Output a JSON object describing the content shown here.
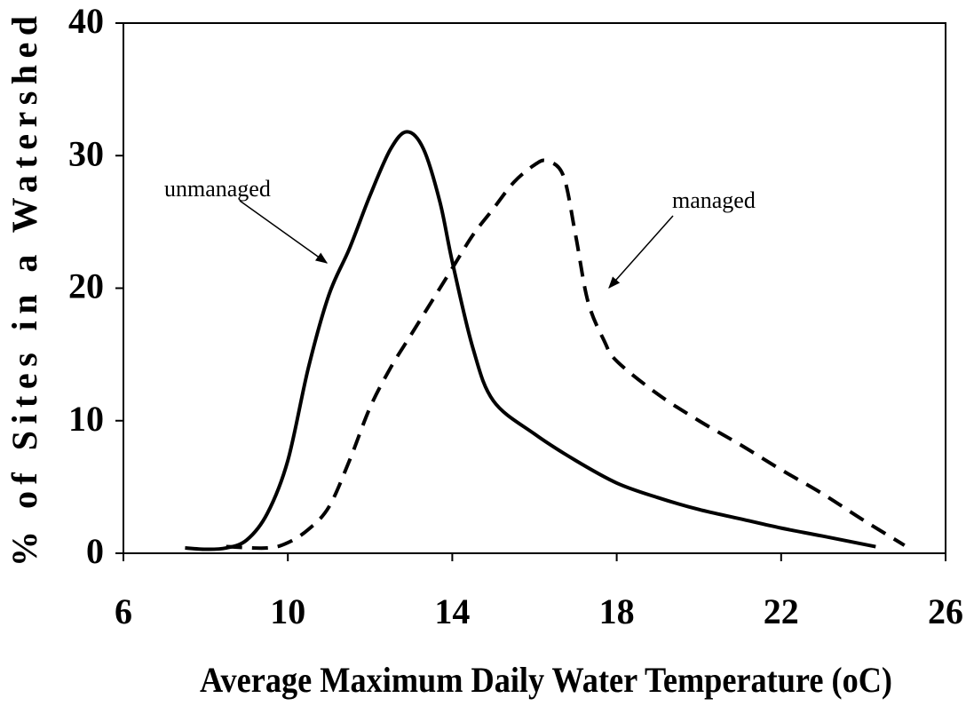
{
  "chart_data": {
    "type": "line",
    "xlabel": "Average Maximum Daily Water Temperature (oC)",
    "ylabel": "% of Sites in a Watershed",
    "xlim": [
      6,
      26
    ],
    "xticks": [
      6,
      10,
      14,
      18,
      22,
      26
    ],
    "ylim": [
      0,
      40
    ],
    "yticks": [
      0,
      10,
      20,
      30,
      40
    ],
    "grid": false,
    "series": [
      {
        "name": "unmanaged",
        "color": "#000000",
        "style": "solid",
        "x": [
          7.5,
          8,
          8.5,
          9,
          9.5,
          10,
          10.5,
          11,
          11.5,
          12,
          12.5,
          12.9,
          13.3,
          13.7,
          14,
          14.5,
          15,
          16,
          17,
          18,
          19,
          20,
          21,
          22,
          23,
          24.3
        ],
        "values": [
          0.4,
          0.3,
          0.4,
          1,
          3,
          7,
          14,
          19.5,
          23,
          27,
          30.5,
          31.8,
          30.5,
          26.5,
          22,
          15.5,
          11.5,
          9,
          7,
          5.3,
          4.2,
          3.3,
          2.6,
          1.9,
          1.3,
          0.5
        ]
      },
      {
        "name": "managed",
        "color": "#000000",
        "style": "dashed",
        "x": [
          8.5,
          9.5,
          10,
          10.5,
          11,
          11.5,
          12,
          12.5,
          13,
          13.5,
          14,
          14.5,
          15,
          15.5,
          16,
          16.3,
          16.7,
          17,
          17.3,
          17.7,
          18,
          19,
          20,
          21,
          22,
          23,
          24,
          25
        ],
        "values": [
          0.5,
          0.4,
          0.8,
          1.8,
          3.5,
          7,
          11,
          14,
          16.5,
          19,
          21.5,
          24,
          26,
          28,
          29.3,
          29.6,
          28.5,
          24,
          19,
          16,
          14.5,
          12,
          10,
          8.2,
          6.3,
          4.5,
          2.5,
          0.6
        ]
      }
    ]
  }
}
